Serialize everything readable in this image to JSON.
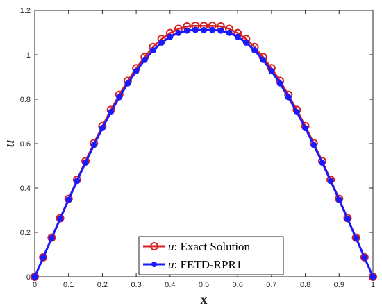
{
  "chart_data": {
    "type": "line",
    "xlabel": "x",
    "ylabel": "u",
    "xlim": [
      0,
      1
    ],
    "ylim": [
      0,
      1.2
    ],
    "xticks": [
      "0",
      "0.1",
      "0.2",
      "0.3",
      "0.4",
      "0.5",
      "0.6",
      "0.7",
      "0.8",
      "0.9",
      "1"
    ],
    "yticks": [
      "0",
      "0.2",
      "0.4",
      "0.6",
      "0.8",
      "1",
      "1.2"
    ],
    "grid": false,
    "legend_position": "bottom-center",
    "x": [
      0,
      0.025,
      0.05,
      0.075,
      0.1,
      0.125,
      0.15,
      0.175,
      0.2,
      0.225,
      0.25,
      0.275,
      0.3,
      0.325,
      0.35,
      0.375,
      0.4,
      0.425,
      0.45,
      0.475,
      0.5,
      0.525,
      0.55,
      0.575,
      0.6,
      0.625,
      0.65,
      0.675,
      0.7,
      0.725,
      0.75,
      0.775,
      0.8,
      0.825,
      0.85,
      0.875,
      0.9,
      0.925,
      0.95,
      0.975,
      1
    ],
    "series": [
      {
        "name": "Exact Solution",
        "legend_prefix": "u",
        "legend_sep": ":",
        "color": "#d62020",
        "marker": "open-circle",
        "values": [
          0,
          0.088,
          0.176,
          0.264,
          0.351,
          0.437,
          0.521,
          0.602,
          0.679,
          0.752,
          0.82,
          0.883,
          0.94,
          0.99,
          1.035,
          1.071,
          1.098,
          1.117,
          1.128,
          1.131,
          1.13,
          1.131,
          1.128,
          1.117,
          1.098,
          1.071,
          1.035,
          0.99,
          0.94,
          0.883,
          0.82,
          0.752,
          0.679,
          0.602,
          0.521,
          0.437,
          0.351,
          0.264,
          0.176,
          0.088,
          0
        ]
      },
      {
        "name": "FETD-RPR1",
        "legend_prefix": "u",
        "legend_sep": ":",
        "color": "#1a1aff",
        "marker": "filled-circle",
        "values": [
          0,
          0.087,
          0.174,
          0.261,
          0.347,
          0.432,
          0.514,
          0.594,
          0.67,
          0.742,
          0.809,
          0.871,
          0.927,
          0.977,
          1.02,
          1.055,
          1.081,
          1.099,
          1.109,
          1.112,
          1.111,
          1.112,
          1.109,
          1.099,
          1.081,
          1.055,
          1.02,
          0.977,
          0.927,
          0.871,
          0.809,
          0.742,
          0.67,
          0.594,
          0.514,
          0.432,
          0.347,
          0.261,
          0.174,
          0.087,
          0
        ]
      }
    ]
  }
}
